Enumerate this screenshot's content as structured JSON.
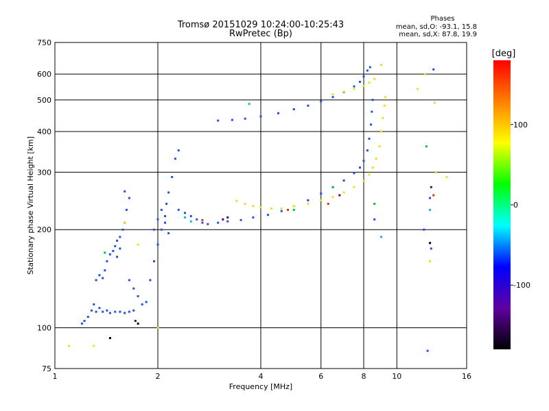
{
  "chart_data": {
    "type": "scatter",
    "title": "Tromsø 20151029 10:24:00-10:25:43",
    "subtitle": "RwPretec (Bp)",
    "xlabel": "Frequency [MHz]",
    "ylabel": "Stationary phase Virtual Height [km]",
    "x_scale": "log",
    "y_scale": "log",
    "xlim": [
      1,
      16
    ],
    "ylim": [
      75,
      750
    ],
    "x_ticks": [
      1,
      2,
      4,
      6,
      8,
      10,
      16
    ],
    "y_ticks": [
      75,
      100,
      200,
      300,
      400,
      500,
      600,
      750
    ],
    "grid": true,
    "phase_summary": {
      "heading": "Phases",
      "o_line": "mean, sd,O: -93.1, 15.8",
      "x_line": "mean, sd,X:  87.8, 19.9"
    },
    "colorbar": {
      "label": "[deg]",
      "range": [
        -180,
        180
      ],
      "ticks": [
        100,
        0,
        -100
      ],
      "colors": [
        "#ff0000",
        "#ff8000",
        "#ffff00",
        "#00ff00",
        "#00ffff",
        "#0000ff",
        "#6000a0",
        "#000000"
      ]
    },
    "series": [
      {
        "color": "#2050e0",
        "points": [
          [
            1.2,
            103
          ],
          [
            1.22,
            105
          ],
          [
            1.25,
            108
          ],
          [
            1.28,
            113
          ],
          [
            1.3,
            118
          ],
          [
            1.32,
            112
          ],
          [
            1.35,
            115
          ],
          [
            1.38,
            112
          ],
          [
            1.42,
            113
          ],
          [
            1.45,
            111
          ],
          [
            1.5,
            112
          ],
          [
            1.55,
            112
          ],
          [
            1.6,
            111
          ],
          [
            1.65,
            112
          ],
          [
            1.7,
            113
          ],
          [
            1.32,
            140
          ],
          [
            1.35,
            145
          ],
          [
            1.38,
            142
          ],
          [
            1.4,
            150
          ],
          [
            1.42,
            160
          ],
          [
            1.45,
            168
          ],
          [
            1.48,
            172
          ],
          [
            1.5,
            178
          ],
          [
            1.52,
            185
          ],
          [
            1.55,
            190
          ],
          [
            1.58,
            200
          ],
          [
            1.6,
            210
          ],
          [
            1.62,
            230
          ],
          [
            1.65,
            250
          ],
          [
            1.6,
            262
          ],
          [
            1.55,
            175
          ],
          [
            1.52,
            165
          ],
          [
            1.65,
            140
          ],
          [
            1.7,
            132
          ],
          [
            1.75,
            125
          ],
          [
            1.8,
            118
          ],
          [
            1.85,
            120
          ],
          [
            1.9,
            140
          ],
          [
            1.95,
            160
          ],
          [
            2.0,
            180
          ],
          [
            2.05,
            200
          ],
          [
            2.1,
            220
          ],
          [
            2.12,
            240
          ],
          [
            2.15,
            260
          ],
          [
            2.2,
            290
          ],
          [
            2.25,
            330
          ],
          [
            2.3,
            350
          ],
          [
            2.05,
            230
          ],
          [
            2.1,
            210
          ],
          [
            2.15,
            195
          ],
          [
            2.0,
            215
          ],
          [
            1.95,
            200
          ],
          [
            2.3,
            230
          ],
          [
            2.4,
            225
          ],
          [
            2.5,
            220
          ],
          [
            2.6,
            215
          ],
          [
            2.7,
            210
          ],
          [
            2.8,
            208
          ],
          [
            3.0,
            210
          ],
          [
            3.2,
            212
          ],
          [
            3.5,
            214
          ],
          [
            3.8,
            218
          ],
          [
            4.2,
            222
          ],
          [
            4.6,
            228
          ],
          [
            5.0,
            236
          ],
          [
            5.5,
            246
          ],
          [
            6.0,
            258
          ],
          [
            6.5,
            270
          ],
          [
            7.0,
            283
          ],
          [
            7.5,
            298
          ],
          [
            7.8,
            310
          ],
          [
            8.0,
            325
          ],
          [
            8.2,
            350
          ],
          [
            8.3,
            380
          ],
          [
            8.4,
            420
          ],
          [
            8.45,
            460
          ],
          [
            8.5,
            500
          ],
          [
            3.0,
            432
          ],
          [
            3.3,
            434
          ],
          [
            3.6,
            438
          ],
          [
            4.0,
            445
          ],
          [
            4.5,
            455
          ],
          [
            5.0,
            468
          ],
          [
            5.5,
            480
          ],
          [
            6.0,
            495
          ],
          [
            6.5,
            510
          ],
          [
            7.0,
            528
          ],
          [
            7.5,
            550
          ],
          [
            7.8,
            568
          ],
          [
            8.0,
            590
          ],
          [
            8.2,
            615
          ],
          [
            8.35,
            630
          ],
          [
            8.6,
            215
          ],
          [
            12.0,
            200
          ],
          [
            12.8,
            620
          ],
          [
            12.5,
            250
          ],
          [
            12.6,
            175
          ],
          [
            12.3,
            85
          ]
        ]
      },
      {
        "color": "#e8e020",
        "points": [
          [
            3.4,
            245
          ],
          [
            3.6,
            240
          ],
          [
            3.8,
            236
          ],
          [
            4.0,
            234
          ],
          [
            4.3,
            232
          ],
          [
            4.6,
            232
          ],
          [
            5.0,
            236
          ],
          [
            5.5,
            240
          ],
          [
            6.0,
            246
          ],
          [
            6.5,
            252
          ],
          [
            7.0,
            260
          ],
          [
            7.5,
            270
          ],
          [
            8.0,
            282
          ],
          [
            8.3,
            295
          ],
          [
            8.5,
            310
          ],
          [
            8.7,
            330
          ],
          [
            8.9,
            360
          ],
          [
            9.0,
            400
          ],
          [
            9.1,
            440
          ],
          [
            9.2,
            480
          ],
          [
            9.25,
            510
          ],
          [
            6.5,
            520
          ],
          [
            7.0,
            530
          ],
          [
            7.5,
            540
          ],
          [
            8.0,
            552
          ],
          [
            8.3,
            565
          ],
          [
            8.6,
            580
          ],
          [
            9.0,
            640
          ],
          [
            1.6,
            210
          ],
          [
            1.75,
            180
          ],
          [
            2.0,
            100
          ],
          [
            1.3,
            88
          ],
          [
            1.1,
            88
          ],
          [
            13.0,
            300
          ],
          [
            14.0,
            290
          ],
          [
            12.9,
            490
          ],
          [
            11.5,
            540
          ],
          [
            12.1,
            600
          ],
          [
            12.5,
            160
          ]
        ]
      },
      {
        "color": "#00c030",
        "points": [
          [
            1.4,
            170
          ],
          [
            5.0,
            230
          ],
          [
            6.5,
            270
          ],
          [
            8.6,
            240
          ],
          [
            12.2,
            360
          ]
        ]
      },
      {
        "color": "#e03010",
        "points": [
          [
            4.8,
            230
          ],
          [
            6.3,
            240
          ],
          [
            2.7,
            214
          ],
          [
            12.8,
            255
          ]
        ]
      },
      {
        "color": "#20b0e0",
        "points": [
          [
            2.4,
            218
          ],
          [
            2.5,
            212
          ],
          [
            3.7,
            486
          ],
          [
            9.0,
            190
          ],
          [
            12.5,
            230
          ]
        ]
      },
      {
        "color": "#500070",
        "points": [
          [
            3.1,
            215
          ],
          [
            3.2,
            218
          ],
          [
            1.72,
            105
          ],
          [
            6.8,
            255
          ],
          [
            12.6,
            270
          ]
        ]
      },
      {
        "color": "#000000",
        "points": [
          [
            1.45,
            93
          ],
          [
            1.75,
            103
          ],
          [
            12.5,
            182
          ]
        ]
      }
    ]
  }
}
